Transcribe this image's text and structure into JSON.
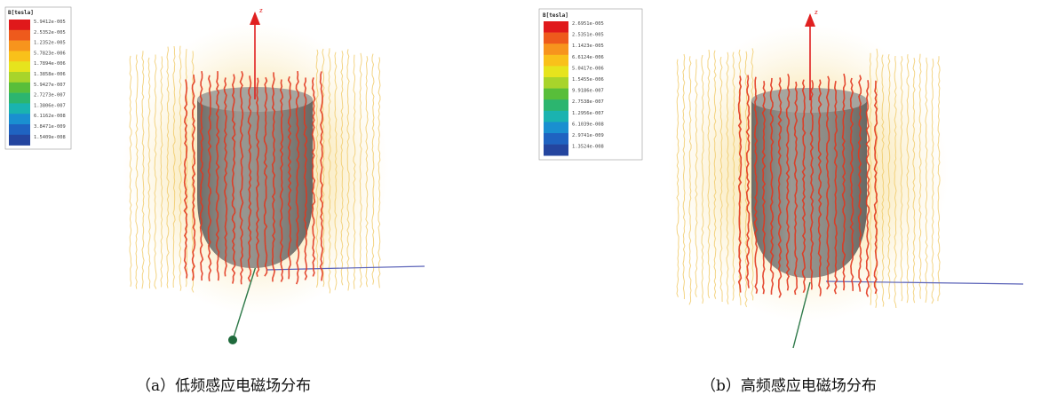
{
  "panels": [
    {
      "id": "a",
      "caption": "（a）低频感应电磁场分布",
      "legend_title": "B[tesla]",
      "legend_values": [
        "5.9412e-005",
        "2.5352e-005",
        "1.2352e-005",
        "5.7823e-006",
        "1.7894e-006",
        "1.3858e-006",
        "5.9427e-007",
        "2.7273e-007",
        "1.3806e-007",
        "6.1162e-008",
        "3.8471e-009",
        "1.5409e-008"
      ],
      "axis_label": "z"
    },
    {
      "id": "b",
      "caption": "（b）高频感应电磁场分布",
      "legend_title": "B[tesla]",
      "legend_values": [
        "2.6951e-005",
        "2.5351e-005",
        "1.1423e-005",
        "6.6124e-006",
        "5.0417e-006",
        "1.5455e-006",
        "9.9186e-007",
        "2.7538e-007",
        "1.2956e-007",
        "6.1039e-008",
        "2.9741e-009",
        "1.3524e-008"
      ],
      "axis_label": "z"
    }
  ],
  "colors": {
    "colormap": [
      "#e0191b",
      "#ee5a1c",
      "#f7941d",
      "#f9c11a",
      "#e6e41d",
      "#a8d42b",
      "#58be3a",
      "#2cb56f",
      "#1ab3b0",
      "#1a8fd0",
      "#1f63c1",
      "#24459f"
    ],
    "field_line": "#e2361e",
    "outer_field": "#f2d27a",
    "body": "#8a8a84",
    "axis_z": "#e02020",
    "axis_x": "#5a62b8",
    "axis_y": "#2f7a4a"
  }
}
